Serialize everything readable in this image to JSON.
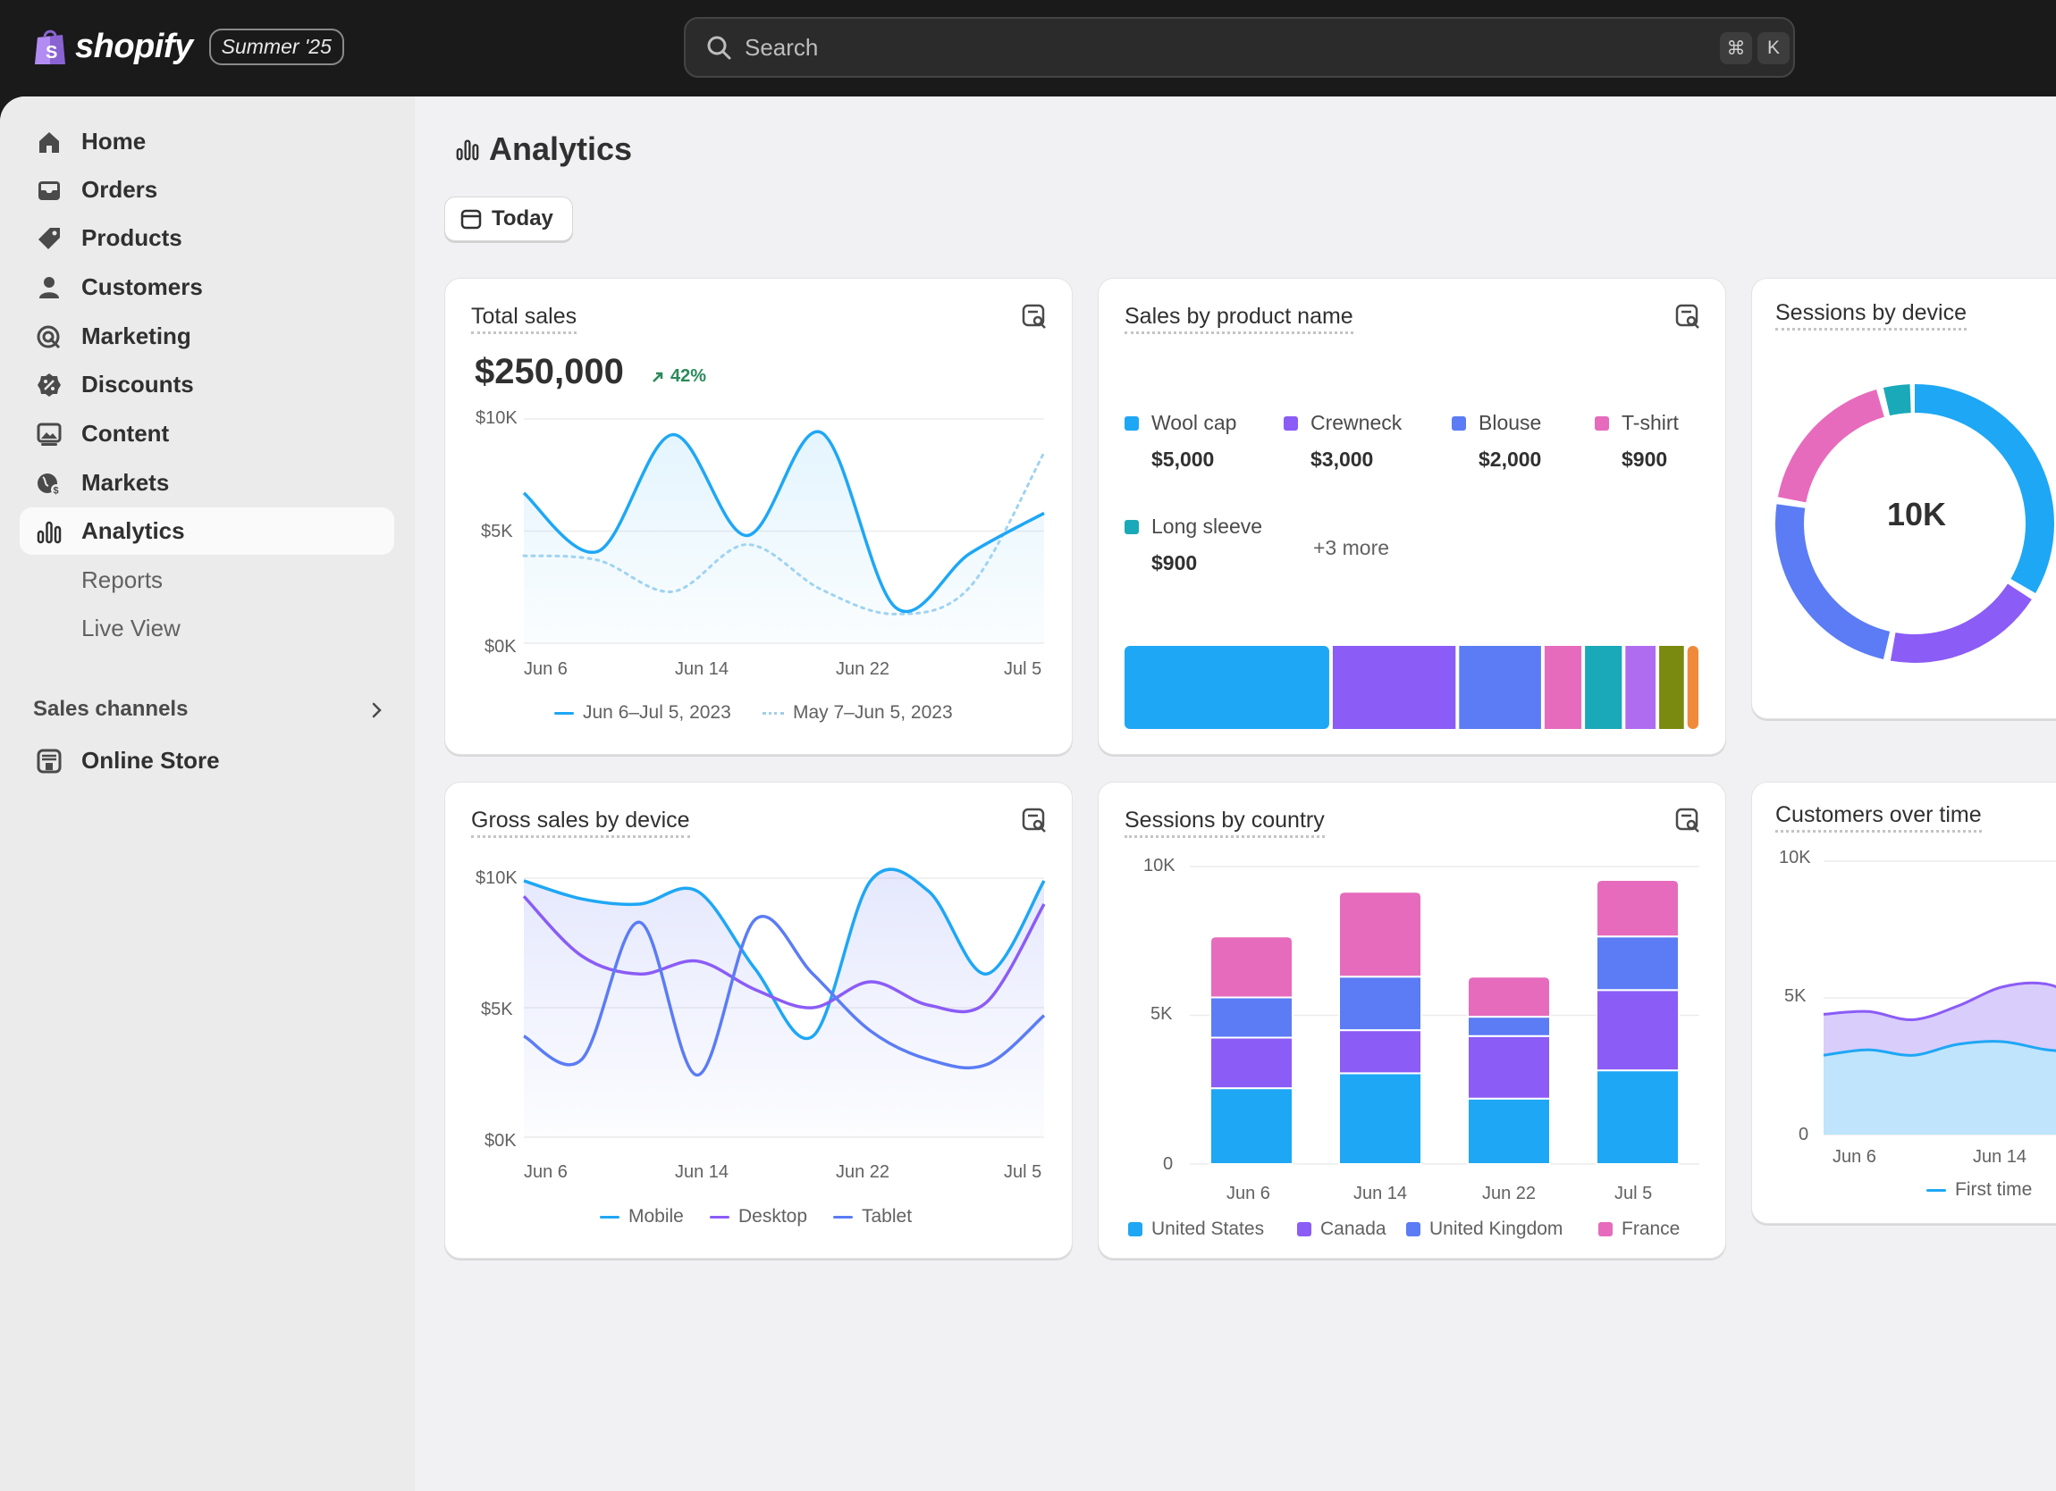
{
  "brand": {
    "name": "shopify",
    "edition": "Summer '25"
  },
  "search": {
    "placeholder": "Search",
    "shortcut_keys": [
      "⌘",
      "K"
    ]
  },
  "sidebar": {
    "items": [
      {
        "label": "Home",
        "icon": "home-icon"
      },
      {
        "label": "Orders",
        "icon": "inbox-icon"
      },
      {
        "label": "Products",
        "icon": "tag-icon"
      },
      {
        "label": "Customers",
        "icon": "person-icon"
      },
      {
        "label": "Marketing",
        "icon": "target-icon"
      },
      {
        "label": "Discounts",
        "icon": "discount-icon"
      },
      {
        "label": "Content",
        "icon": "image-icon"
      },
      {
        "label": "Markets",
        "icon": "globe-icon"
      },
      {
        "label": "Analytics",
        "icon": "bar-chart-icon",
        "active": true
      },
      {
        "label": "Reports",
        "sub": true
      },
      {
        "label": "Live View",
        "sub": true
      }
    ],
    "sales_channels_label": "Sales channels",
    "online_store_label": "Online Store"
  },
  "page": {
    "title": "Analytics",
    "date_filter": "Today"
  },
  "cards": {
    "total_sales": {
      "title": "Total sales",
      "value": "$250,000",
      "trend": "42%",
      "y_ticks": [
        "$10K",
        "$5K",
        "$0K"
      ],
      "x_ticks": [
        "Jun 6",
        "Jun 14",
        "Jun 22",
        "Jul 5"
      ],
      "legend": [
        "Jun 6–Jul 5, 2023",
        "May 7–Jun 5, 2023"
      ]
    },
    "sales_by_product": {
      "title": "Sales by product name",
      "items": [
        {
          "name": "Wool cap",
          "value": "$5,000"
        },
        {
          "name": "Crewneck",
          "value": "$3,000"
        },
        {
          "name": "Blouse",
          "value": "$2,000"
        },
        {
          "name": "T-shirt",
          "value": "$900"
        },
        {
          "name": "Long sleeve",
          "value": "$900"
        }
      ],
      "more": "+3 more"
    },
    "sessions_by_device": {
      "title": "Sessions by device",
      "center": "10K"
    },
    "gross_sales_by_device": {
      "title": "Gross sales by device",
      "y_ticks": [
        "$10K",
        "$5K",
        "$0K"
      ],
      "x_ticks": [
        "Jun 6",
        "Jun 14",
        "Jun 22",
        "Jul 5"
      ],
      "legend": [
        "Mobile",
        "Desktop",
        "Tablet"
      ]
    },
    "sessions_by_country": {
      "title": "Sessions by country",
      "y_ticks": [
        "10K",
        "5K",
        "0"
      ],
      "x_ticks": [
        "Jun 6",
        "Jun 14",
        "Jun 22",
        "Jul 5"
      ],
      "legend": [
        "United States",
        "Canada",
        "United Kingdom",
        "France"
      ]
    },
    "customers_over_time": {
      "title": "Customers over time",
      "y_ticks": [
        "10K",
        "5K",
        "0"
      ],
      "x_ticks": [
        "Jun 6",
        "Jun 14"
      ],
      "legend": [
        "First time"
      ]
    }
  },
  "colors": {
    "blue": "#1ea7f5",
    "violet": "#8b5cf6",
    "indigo": "#5b7cf5",
    "pink": "#e66bbd",
    "teal": "#1aa9b8",
    "accent_green": "#2b8a5a"
  },
  "chart_data": [
    {
      "type": "line",
      "title": "Total sales",
      "x": [
        "Jun 6",
        "Jun 10",
        "Jun 14",
        "Jun 18",
        "Jun 22",
        "Jun 26",
        "Jul 1",
        "Jul 5"
      ],
      "ylim": [
        0,
        10000
      ],
      "series": [
        {
          "name": "Jun 6–Jul 5, 2023",
          "values": [
            6700,
            4100,
            9300,
            4800,
            9400,
            1600,
            4000,
            5800
          ]
        },
        {
          "name": "May 7–Jun 5, 2023",
          "values": [
            3900,
            3700,
            2300,
            4400,
            2400,
            1300,
            2500,
            8500
          ]
        }
      ]
    },
    {
      "type": "bar",
      "title": "Sales by product name",
      "categories": [
        "Wool cap",
        "Crewneck",
        "Blouse",
        "T-shirt",
        "Long sleeve"
      ],
      "values": [
        5000,
        3000,
        2000,
        900,
        900
      ]
    },
    {
      "type": "pie",
      "title": "Sessions by device",
      "center_label": "10K"
    },
    {
      "type": "line",
      "title": "Gross sales by device",
      "x": [
        "Jun 6",
        "Jun 14",
        "Jun 22",
        "Jul 5"
      ],
      "ylim": [
        0,
        10000
      ],
      "series": [
        {
          "name": "Mobile",
          "values": [
            9900,
            7900,
            4100,
            9900
          ]
        },
        {
          "name": "Desktop",
          "values": [
            9300,
            5800,
            5300,
            9000
          ]
        },
        {
          "name": "Tablet",
          "values": [
            3900,
            8400,
            3900,
            4700
          ]
        }
      ]
    },
    {
      "type": "bar",
      "title": "Sessions by country",
      "categories": [
        "Jun 6",
        "Jun 14",
        "Jun 22",
        "Jul 5"
      ],
      "ylim": [
        0,
        10000
      ],
      "series": [
        {
          "name": "United States",
          "values": [
            2550,
            3050,
            2200,
            3150
          ]
        },
        {
          "name": "Canada",
          "values": [
            1700,
            1450,
            2100,
            2700
          ]
        },
        {
          "name": "United Kingdom",
          "values": [
            1350,
            1800,
            650,
            1800
          ]
        },
        {
          "name": "France",
          "values": [
            2050,
            2850,
            1350,
            1900
          ]
        }
      ]
    },
    {
      "type": "area",
      "title": "Customers over time",
      "x": [
        "Jun 6",
        "Jun 14"
      ],
      "ylim": [
        0,
        10000
      ],
      "series": [
        {
          "name": "First time",
          "values": [
            2900,
            3100
          ]
        }
      ]
    }
  ]
}
